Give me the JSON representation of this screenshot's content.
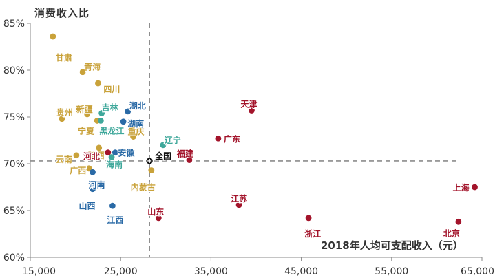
{
  "chart_data": {
    "type": "scatter",
    "title": "",
    "ylabel": "消费收入比",
    "xlabel": "2018年人均可支配收入（元）",
    "xlim": [
      15000,
      65000
    ],
    "ylim": [
      60,
      85
    ],
    "x_ticks": [
      15000,
      25000,
      35000,
      45000,
      55000,
      65000
    ],
    "x_tick_labels": [
      "15,000",
      "25,000",
      "35,000",
      "45,000",
      "55,000",
      "65,000"
    ],
    "y_ticks": [
      60,
      65,
      70,
      75,
      80,
      85
    ],
    "y_tick_labels": [
      "60%",
      "65%",
      "70%",
      "75%",
      "80%",
      "85%"
    ],
    "reference_lines": {
      "x": 28200,
      "y": 70.3
    },
    "colors": {
      "gold": "#c9a23a",
      "teal": "#3fa89b",
      "blue": "#2a6aa6",
      "red": "#a3142b",
      "black": "#111111"
    },
    "points": [
      {
        "name": "甘肃",
        "x": 17500,
        "y": 83.6,
        "color": "gold"
      },
      {
        "name": "青海",
        "x": 20800,
        "y": 79.8,
        "color": "gold"
      },
      {
        "name": "四川",
        "x": 22500,
        "y": 78.6,
        "color": "gold"
      },
      {
        "name": "新疆",
        "x": 21300,
        "y": 75.3,
        "color": "gold"
      },
      {
        "name": "吉林",
        "x": 22900,
        "y": 75.4,
        "color": "teal"
      },
      {
        "name": "湖北",
        "x": 25800,
        "y": 75.6,
        "color": "blue"
      },
      {
        "name": "贵州",
        "x": 18500,
        "y": 74.8,
        "color": "gold"
      },
      {
        "name": "宁夏",
        "x": 22400,
        "y": 74.6,
        "color": "gold"
      },
      {
        "name": "黑龙江",
        "x": 22800,
        "y": 74.6,
        "color": "teal"
      },
      {
        "name": "湖南",
        "x": 25300,
        "y": 74.5,
        "color": "blue"
      },
      {
        "name": "重庆",
        "x": 26400,
        "y": 72.9,
        "color": "gold"
      },
      {
        "name": "陕西",
        "x": 22600,
        "y": 71.7,
        "color": "gold"
      },
      {
        "name": "辽宁",
        "x": 29700,
        "y": 72.0,
        "color": "teal"
      },
      {
        "name": "安徽",
        "x": 24400,
        "y": 71.2,
        "color": "blue"
      },
      {
        "name": "河北",
        "x": 23600,
        "y": 71.2,
        "color": "red"
      },
      {
        "name": "云南",
        "x": 20100,
        "y": 70.9,
        "color": "gold"
      },
      {
        "name": "海南",
        "x": 24000,
        "y": 70.7,
        "color": "teal"
      },
      {
        "name": "全国",
        "x": 28200,
        "y": 70.3,
        "color": "black"
      },
      {
        "name": "广西",
        "x": 21500,
        "y": 69.5,
        "color": "gold"
      },
      {
        "name": "河南",
        "x": 21900,
        "y": 69.1,
        "color": "blue"
      },
      {
        "name": "内蒙古",
        "x": 28400,
        "y": 69.3,
        "color": "gold"
      },
      {
        "name": "山西",
        "x": 21900,
        "y": 67.3,
        "color": "blue"
      },
      {
        "name": "江西",
        "x": 24100,
        "y": 65.5,
        "color": "blue"
      },
      {
        "name": "山东",
        "x": 29200,
        "y": 64.2,
        "color": "red"
      },
      {
        "name": "福建",
        "x": 32600,
        "y": 70.4,
        "color": "red"
      },
      {
        "name": "广东",
        "x": 35800,
        "y": 72.7,
        "color": "red"
      },
      {
        "name": "天津",
        "x": 39500,
        "y": 75.7,
        "color": "red"
      },
      {
        "name": "江苏",
        "x": 38100,
        "y": 65.6,
        "color": "red"
      },
      {
        "name": "浙江",
        "x": 45800,
        "y": 64.2,
        "color": "red"
      },
      {
        "name": "上海",
        "x": 64200,
        "y": 67.5,
        "color": "red"
      },
      {
        "name": "北京",
        "x": 62400,
        "y": 63.8,
        "color": "red"
      }
    ]
  }
}
